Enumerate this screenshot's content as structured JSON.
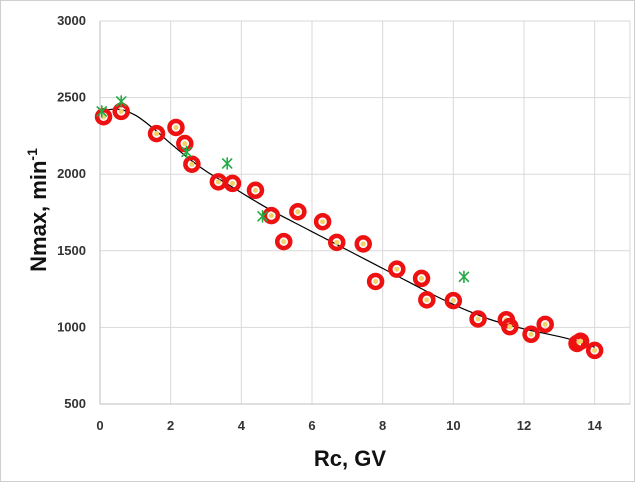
{
  "chart_data": {
    "type": "scatter",
    "title": "",
    "xlabel": "Rc,  GV",
    "ylabel_main": "Nmax,  min",
    "ylabel_sup": "-1",
    "xlim": [
      0,
      15
    ],
    "ylim": [
      500,
      3000
    ],
    "x_ticks": [
      0,
      2,
      4,
      6,
      8,
      10,
      12,
      14
    ],
    "x_tick_labels": [
      "0",
      "2",
      "4",
      "6",
      "8",
      "10",
      "12",
      "14"
    ],
    "y_ticks": [
      500,
      1000,
      1500,
      2000,
      2500,
      3000
    ],
    "y_tick_labels": [
      "500",
      "1000",
      "1500",
      "2000",
      "2500",
      "3000"
    ],
    "grid": true,
    "series": [
      {
        "marker": "red-ring-yellow-center",
        "color": "#ee1111",
        "x": [
          0.1,
          0.6,
          1.6,
          2.15,
          2.4,
          2.6,
          3.35,
          3.75,
          4.4,
          4.85,
          5.2,
          5.6,
          6.3,
          6.7,
          7.45,
          7.8,
          8.4,
          9.1,
          9.25,
          10.0,
          10.7,
          11.5,
          11.6,
          12.2,
          12.6,
          13.5,
          13.6,
          14.0
        ],
        "values": [
          2375,
          2410,
          2265,
          2305,
          2200,
          2065,
          1950,
          1940,
          1895,
          1730,
          1560,
          1755,
          1690,
          1555,
          1545,
          1300,
          1380,
          1320,
          1180,
          1175,
          1055,
          1050,
          1005,
          955,
          1020,
          895,
          910,
          850
        ]
      },
      {
        "marker": "green-asterisk",
        "color": "#22aa44",
        "x": [
          0.05,
          0.6,
          2.45,
          3.6,
          4.6,
          10.3
        ],
        "values": [
          2410,
          2475,
          2145,
          2070,
          1725,
          1330
        ]
      }
    ],
    "trend_line": {
      "color": "#000000",
      "x": [
        0,
        0.5,
        1,
        1.5,
        2,
        2.5,
        3,
        3.5,
        4,
        4.5,
        5,
        5.5,
        6,
        6.5,
        7,
        7.5,
        8,
        8.5,
        9,
        9.5,
        10,
        10.5,
        11,
        11.5,
        12,
        12.5,
        13,
        13.5,
        14
      ],
      "values": [
        2410,
        2425,
        2385,
        2300,
        2200,
        2105,
        2020,
        1950,
        1880,
        1810,
        1745,
        1685,
        1625,
        1565,
        1505,
        1445,
        1385,
        1325,
        1265,
        1205,
        1150,
        1100,
        1055,
        1020,
        990,
        965,
        940,
        910,
        870
      ]
    }
  }
}
